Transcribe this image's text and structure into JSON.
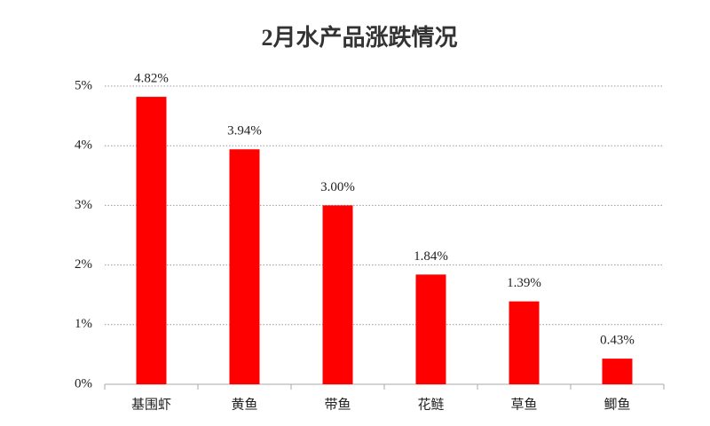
{
  "chart_data": {
    "type": "bar",
    "title": "2月水产品涨跌情况",
    "categories": [
      "基围虾",
      "黄鱼",
      "带鱼",
      "花鲢",
      "草鱼",
      "鲫鱼"
    ],
    "values": [
      4.82,
      3.94,
      3.0,
      1.84,
      1.39,
      0.43
    ],
    "value_labels": [
      "4.82%",
      "3.94%",
      "3.00%",
      "1.84%",
      "1.39%",
      "0.43%"
    ],
    "color": "#ff0000",
    "ylim": [
      0,
      5
    ],
    "yticks": [
      {
        "value": 0,
        "label": "0%"
      },
      {
        "value": 1,
        "label": "1%"
      },
      {
        "value": 2,
        "label": "2%"
      },
      {
        "value": 3,
        "label": "3%"
      },
      {
        "value": 4,
        "label": "4%"
      },
      {
        "value": 5,
        "label": "5%"
      }
    ],
    "grid": true
  }
}
